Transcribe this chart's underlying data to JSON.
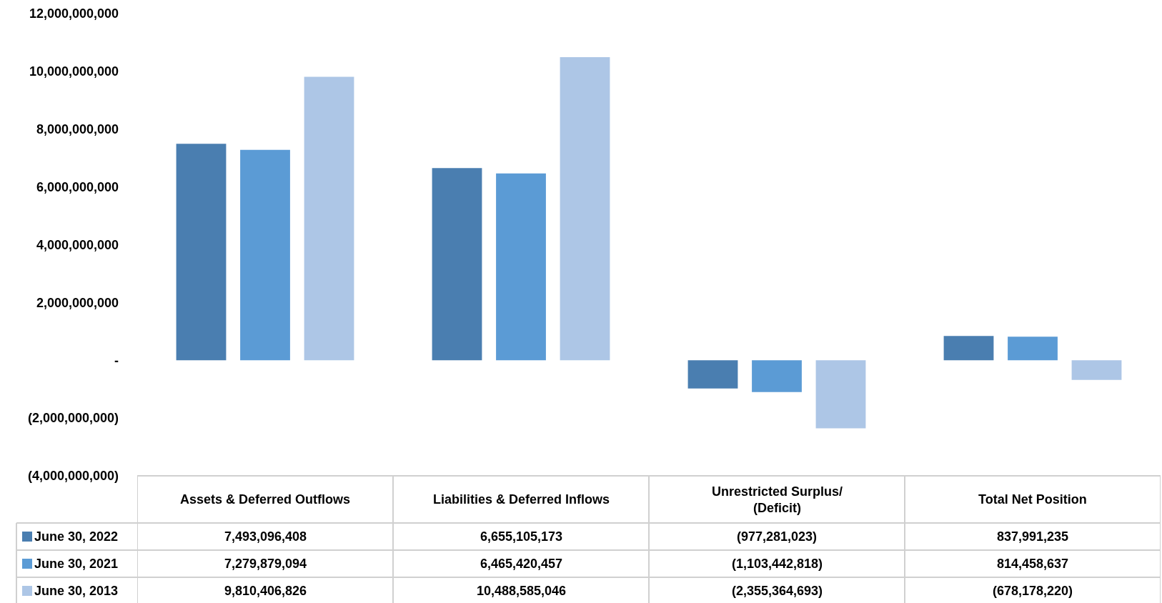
{
  "chart_data": {
    "type": "bar",
    "categories": [
      "Assets & Deferred Outflows",
      "Liabilities & Deferred Inflows",
      "Unrestricted Surplus/\n(Deficit)",
      "Total Net Position"
    ],
    "series": [
      {
        "name": "June 30, 2022",
        "color": "#4a7eb0",
        "values": [
          7493096408,
          6655105173,
          -977281023,
          837991235
        ],
        "value_labels": [
          "7,493,096,408",
          "6,655,105,173",
          "(977,281,023)",
          "837,991,235"
        ]
      },
      {
        "name": "June 30, 2021",
        "color": "#5b9bd5",
        "values": [
          7279879094,
          6465420457,
          -1103442818,
          814458637
        ],
        "value_labels": [
          "7,279,879,094",
          "6,465,420,457",
          "(1,103,442,818)",
          "814,458,637"
        ]
      },
      {
        "name": "June 30, 2013",
        "color": "#adc6e6",
        "values": [
          9810406826,
          10488585046,
          -2355364693,
          -678178220
        ],
        "value_labels": [
          "9,810,406,826",
          "10,488,585,046",
          "(2,355,364,693)",
          "(678,178,220)"
        ]
      }
    ],
    "ylim": [
      -4000000000,
      12000000000
    ],
    "yticks": [
      {
        "value": -4000000000,
        "label": "(4,000,000,000)"
      },
      {
        "value": -2000000000,
        "label": "(2,000,000,000)"
      },
      {
        "value": 0,
        "label": "-"
      },
      {
        "value": 2000000000,
        "label": "2,000,000,000"
      },
      {
        "value": 4000000000,
        "label": "4,000,000,000"
      },
      {
        "value": 6000000000,
        "label": "6,000,000,000"
      },
      {
        "value": 8000000000,
        "label": "8,000,000,000"
      },
      {
        "value": 10000000000,
        "label": "10,000,000,000"
      },
      {
        "value": 12000000000,
        "label": "12,000,000,000"
      }
    ],
    "legend": "bottom left"
  }
}
